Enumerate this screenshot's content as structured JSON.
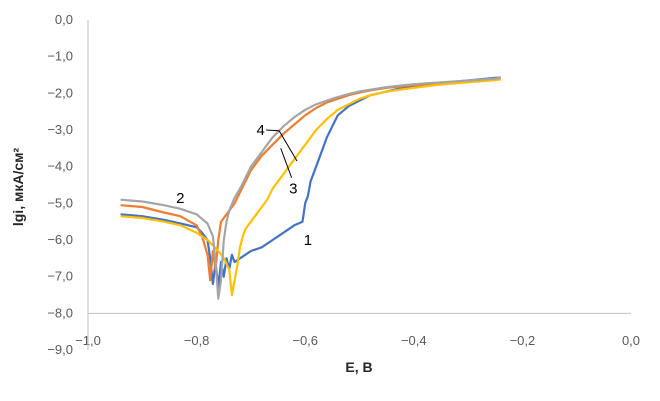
{
  "chart_data": {
    "type": "line",
    "title": "",
    "xlabel": "E, В",
    "ylabel": "lgi, мкА/см²",
    "xlim": [
      -1.0,
      0.0
    ],
    "ylim": [
      -9.0,
      0.0
    ],
    "x_ticks": [
      -1.0,
      -0.8,
      -0.6,
      -0.4,
      -0.2,
      0.0
    ],
    "x_tick_labels": [
      "−1,0",
      "−0,8",
      "−0,6",
      "−0,4",
      "−0,2",
      "0,0"
    ],
    "y_ticks": [
      0,
      -1,
      -2,
      -3,
      -4,
      -5,
      -6,
      -7,
      -8,
      -9
    ],
    "y_tick_labels": [
      "0,0",
      "−1,0",
      "−2,0",
      "−3,0",
      "−4,0",
      "−5,0",
      "−6,0",
      "−7,0",
      "−8,0",
      "−9,0"
    ],
    "grid": false,
    "legend": "none",
    "series": [
      {
        "label": "1",
        "color": "#4472C4",
        "x": [
          -0.94,
          -0.9,
          -0.86,
          -0.83,
          -0.8,
          -0.79,
          -0.78,
          -0.775,
          -0.77,
          -0.765,
          -0.76,
          -0.755,
          -0.75,
          -0.745,
          -0.74,
          -0.735,
          -0.73,
          -0.72,
          -0.71,
          -0.7,
          -0.68,
          -0.66,
          -0.64,
          -0.62,
          -0.605,
          -0.6,
          -0.595,
          -0.59,
          -0.58,
          -0.57,
          -0.56,
          -0.55,
          -0.54,
          -0.52,
          -0.5,
          -0.48,
          -0.45,
          -0.42,
          -0.4,
          -0.35,
          -0.3,
          -0.25,
          -0.24
        ],
        "y": [
          -5.3,
          -5.35,
          -5.45,
          -5.55,
          -5.65,
          -5.8,
          -6.0,
          -6.5,
          -7.2,
          -6.6,
          -7.3,
          -6.6,
          -7.0,
          -6.5,
          -6.8,
          -6.4,
          -6.6,
          -6.5,
          -6.4,
          -6.3,
          -6.2,
          -6.0,
          -5.8,
          -5.6,
          -5.5,
          -5.0,
          -4.8,
          -4.4,
          -4.0,
          -3.6,
          -3.2,
          -2.9,
          -2.6,
          -2.35,
          -2.2,
          -2.05,
          -1.95,
          -1.85,
          -1.8,
          -1.72,
          -1.65,
          -1.58,
          -1.57
        ]
      },
      {
        "label": "2",
        "color": "#ED7D31",
        "x": [
          -0.94,
          -0.9,
          -0.86,
          -0.83,
          -0.8,
          -0.79,
          -0.78,
          -0.775,
          -0.77,
          -0.765,
          -0.76,
          -0.755,
          -0.75,
          -0.74,
          -0.73,
          -0.72,
          -0.71,
          -0.7,
          -0.68,
          -0.66,
          -0.64,
          -0.62,
          -0.6,
          -0.58,
          -0.56,
          -0.54,
          -0.52,
          -0.5,
          -0.48,
          -0.45,
          -0.4,
          -0.35,
          -0.3,
          -0.25,
          -0.24
        ],
        "y": [
          -5.05,
          -5.1,
          -5.25,
          -5.35,
          -5.6,
          -5.9,
          -6.4,
          -7.1,
          -6.3,
          -6.8,
          -6.0,
          -5.5,
          -5.4,
          -5.2,
          -5.0,
          -4.7,
          -4.4,
          -4.1,
          -3.7,
          -3.4,
          -3.1,
          -2.85,
          -2.6,
          -2.4,
          -2.25,
          -2.15,
          -2.05,
          -1.98,
          -1.92,
          -1.85,
          -1.78,
          -1.72,
          -1.66,
          -1.6,
          -1.58
        ]
      },
      {
        "label": "3",
        "color": "#FFC000",
        "x": [
          -0.94,
          -0.9,
          -0.86,
          -0.83,
          -0.8,
          -0.78,
          -0.76,
          -0.75,
          -0.74,
          -0.735,
          -0.73,
          -0.725,
          -0.72,
          -0.715,
          -0.71,
          -0.7,
          -0.69,
          -0.68,
          -0.67,
          -0.66,
          -0.65,
          -0.64,
          -0.63,
          -0.62,
          -0.61,
          -0.6,
          -0.58,
          -0.56,
          -0.54,
          -0.52,
          -0.5,
          -0.48,
          -0.45,
          -0.4,
          -0.35,
          -0.3,
          -0.25,
          -0.24
        ],
        "y": [
          -5.35,
          -5.4,
          -5.5,
          -5.6,
          -5.8,
          -6.0,
          -6.3,
          -6.5,
          -6.8,
          -7.5,
          -7.1,
          -6.7,
          -6.2,
          -5.9,
          -5.7,
          -5.5,
          -5.3,
          -5.1,
          -4.9,
          -4.6,
          -4.4,
          -4.2,
          -4.0,
          -3.8,
          -3.6,
          -3.4,
          -3.0,
          -2.7,
          -2.45,
          -2.3,
          -2.15,
          -2.05,
          -1.95,
          -1.85,
          -1.76,
          -1.7,
          -1.64,
          -1.62
        ]
      },
      {
        "label": "4",
        "color": "#A5A5A5",
        "x": [
          -0.94,
          -0.9,
          -0.86,
          -0.83,
          -0.8,
          -0.78,
          -0.77,
          -0.765,
          -0.76,
          -0.755,
          -0.75,
          -0.745,
          -0.74,
          -0.73,
          -0.72,
          -0.71,
          -0.7,
          -0.68,
          -0.66,
          -0.64,
          -0.62,
          -0.6,
          -0.58,
          -0.56,
          -0.54,
          -0.52,
          -0.5,
          -0.48,
          -0.45,
          -0.42,
          -0.4,
          -0.35,
          -0.3,
          -0.25,
          -0.24
        ],
        "y": [
          -4.9,
          -4.95,
          -5.05,
          -5.15,
          -5.3,
          -5.55,
          -5.9,
          -6.6,
          -7.6,
          -7.1,
          -6.0,
          -5.5,
          -5.2,
          -4.85,
          -4.6,
          -4.3,
          -4.0,
          -3.6,
          -3.2,
          -2.9,
          -2.65,
          -2.45,
          -2.3,
          -2.2,
          -2.1,
          -2.02,
          -1.95,
          -1.9,
          -1.83,
          -1.78,
          -1.75,
          -1.7,
          -1.65,
          -1.6,
          -1.58
        ]
      }
    ],
    "annotations": [
      {
        "text": "1",
        "x": -0.595,
        "y": -6.0
      },
      {
        "text": "2",
        "x": -0.83,
        "y": -4.85
      },
      {
        "text": "3",
        "x": -0.622,
        "y": -4.6
      },
      {
        "text": "4",
        "x": -0.682,
        "y": -3.0
      }
    ]
  }
}
